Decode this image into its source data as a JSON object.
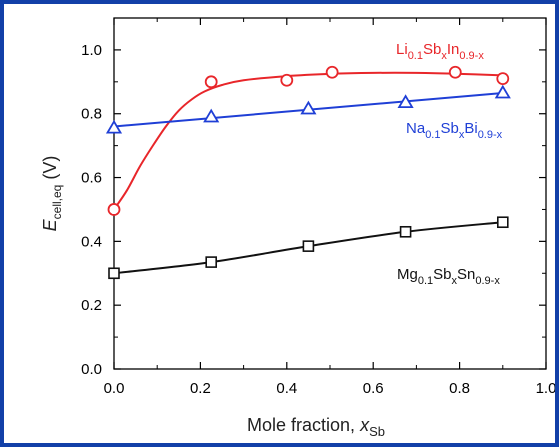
{
  "chart_data": {
    "type": "line",
    "ylabel": {
      "main": "E",
      "sub": "cell,eq",
      "unit": " (V)"
    },
    "xlabel": {
      "main": "Mole fraction, ",
      "var": "x",
      "sub": "Sb"
    },
    "xlim": [
      0.0,
      1.0
    ],
    "ylim": [
      0.0,
      1.1
    ],
    "xticks": [
      "0.0",
      "0.2",
      "0.4",
      "0.6",
      "0.8",
      "1.0"
    ],
    "yticks": [
      "0.0",
      "0.2",
      "0.4",
      "0.6",
      "0.8",
      "1.0"
    ],
    "series": [
      {
        "name": "Li0.1SbxIn0.9-x",
        "label_parts": [
          {
            "t": "Li",
            "sub": false
          },
          {
            "t": "0.1",
            "sub": true
          },
          {
            "t": "Sb",
            "sub": false
          },
          {
            "t": "x",
            "sub": true
          },
          {
            "t": "In",
            "sub": false
          },
          {
            "t": "0.9-x",
            "sub": true
          }
        ],
        "color": "#e8262a",
        "marker": "circle",
        "points": [
          [
            0.0,
            0.5
          ],
          [
            0.225,
            0.9
          ],
          [
            0.4,
            0.905
          ],
          [
            0.505,
            0.93
          ],
          [
            0.79,
            0.93
          ],
          [
            0.9,
            0.91
          ]
        ],
        "fit": [
          [
            0.0,
            0.5
          ],
          [
            0.03,
            0.56
          ],
          [
            0.06,
            0.635
          ],
          [
            0.09,
            0.7
          ],
          [
            0.12,
            0.76
          ],
          [
            0.15,
            0.81
          ],
          [
            0.18,
            0.845
          ],
          [
            0.21,
            0.87
          ],
          [
            0.25,
            0.89
          ],
          [
            0.3,
            0.905
          ],
          [
            0.4,
            0.918
          ],
          [
            0.5,
            0.925
          ],
          [
            0.6,
            0.928
          ],
          [
            0.7,
            0.928
          ],
          [
            0.8,
            0.925
          ],
          [
            0.9,
            0.92
          ]
        ]
      },
      {
        "name": "Na0.1SbxBi0.9-x",
        "label_parts": [
          {
            "t": "Na",
            "sub": false
          },
          {
            "t": "0.1",
            "sub": true
          },
          {
            "t": "Sb",
            "sub": false
          },
          {
            "t": "x",
            "sub": true
          },
          {
            "t": "Bi",
            "sub": false
          },
          {
            "t": "0.9-x",
            "sub": true
          }
        ],
        "color": "#1f3fd6",
        "marker": "triangle",
        "points": [
          [
            0.0,
            0.755
          ],
          [
            0.225,
            0.79
          ],
          [
            0.45,
            0.815
          ],
          [
            0.675,
            0.835
          ],
          [
            0.9,
            0.865
          ]
        ],
        "fit": [
          [
            0.0,
            0.76
          ],
          [
            0.9,
            0.865
          ]
        ]
      },
      {
        "name": "Mg0.1SbxSn0.9-x",
        "label_parts": [
          {
            "t": "Mg",
            "sub": false
          },
          {
            "t": "0.1",
            "sub": true
          },
          {
            "t": "Sb",
            "sub": false
          },
          {
            "t": "x",
            "sub": true
          },
          {
            "t": "Sn",
            "sub": false
          },
          {
            "t": "0.9-x",
            "sub": true
          }
        ],
        "color": "#111111",
        "marker": "square",
        "points": [
          [
            0.0,
            0.3
          ],
          [
            0.225,
            0.335
          ],
          [
            0.45,
            0.385
          ],
          [
            0.675,
            0.43
          ],
          [
            0.9,
            0.46
          ]
        ],
        "fit": [
          [
            0.0,
            0.3
          ],
          [
            0.225,
            0.335
          ],
          [
            0.45,
            0.385
          ],
          [
            0.675,
            0.43
          ],
          [
            0.9,
            0.46
          ]
        ]
      }
    ]
  }
}
